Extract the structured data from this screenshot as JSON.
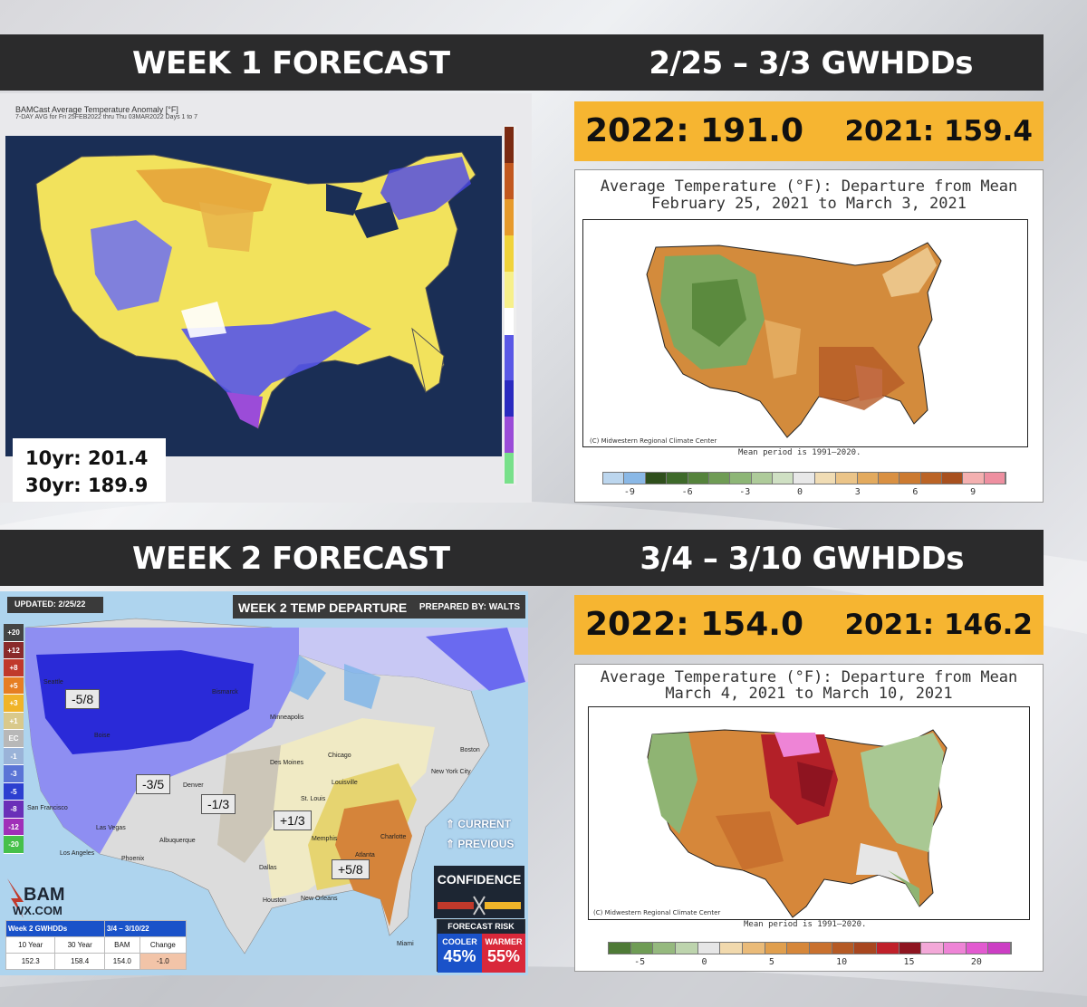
{
  "week1": {
    "title": "WEEK 1 FORECAST",
    "period": "2/25 – 3/3 GWHDDs",
    "gwhdd_2022": "2022: 191.0",
    "gwhdd_2021": "2021: 159.4",
    "bamcast_title": "BAMCast Average Temperature Anomaly [°F]",
    "bamcast_subtitle": "7-DAY AVG for Fri 25FEB2022 thru Thu 03MAR2022 Days 1 to 7",
    "avg_10yr": "10yr: 201.4",
    "avg_30yr": "30yr: 189.9",
    "climate_title_line1": "Average Temperature (°F): Departure from Mean",
    "climate_title_line2": "February 25, 2021 to March 3, 2021",
    "climate_credit": "(C) Midwestern Regional Climate Center",
    "mean_period": "Mean period is 1991–2020.",
    "colorbar_ticks": [
      "-9",
      "-6",
      "-3",
      "0",
      "3",
      "6",
      "9"
    ],
    "colorbar_colors": [
      "#bcd6ee",
      "#8ab8e6",
      "#2f4f1c",
      "#3e6a2a",
      "#55833c",
      "#6f9c55",
      "#8db676",
      "#aecb9a",
      "#cfe0c3",
      "#e8e8e8",
      "#f0dcb4",
      "#ebc488",
      "#e3aa5e",
      "#d99042",
      "#cc7a30",
      "#bb6426",
      "#a8501e",
      "#f4b0b0",
      "#ee8fa0"
    ]
  },
  "week2": {
    "title": "WEEK 2 FORECAST",
    "period": "3/4 – 3/10 GWHDDs",
    "gwhdd_2022": "2022: 154.0",
    "gwhdd_2021": "2021: 146.2",
    "map_title": "WEEK 2 TEMP DEPARTURE",
    "prepared_by": "PREPARED BY: WALTS",
    "updated": "UPDATED: 2/25/22",
    "legend": [
      {
        "label": "+20",
        "color": "#444444"
      },
      {
        "label": "+12",
        "color": "#8a2a2a"
      },
      {
        "label": "+8",
        "color": "#c0392b"
      },
      {
        "label": "+5",
        "color": "#e67e22"
      },
      {
        "label": "+3",
        "color": "#f0b429"
      },
      {
        "label": "+1",
        "color": "#d9c98b"
      },
      {
        "label": "EC",
        "color": "#b8b8b8"
      },
      {
        "label": "-1",
        "color": "#9ab3d8"
      },
      {
        "label": "-3",
        "color": "#5a74d6"
      },
      {
        "label": "-5",
        "color": "#2c3fd0"
      },
      {
        "label": "-8",
        "color": "#6a2fb8"
      },
      {
        "label": "-12",
        "color": "#a02fb8"
      },
      {
        "label": "-20",
        "color": "#46c04a"
      }
    ],
    "labels": {
      "l1": "-5/8",
      "l2": "-3/5",
      "l3": "-1/3",
      "l4": "+1/3",
      "l5": "+5/8"
    },
    "cities": {
      "seattle": "Seattle",
      "bismarck": "Bismarck",
      "boise": "Boise",
      "minneapolis": "Minneapolis",
      "chicago": "Chicago",
      "desmoines": "Des Moines",
      "denver": "Denver",
      "sanfrancisco": "San Francisco",
      "lasvegas": "Las Vegas",
      "losangeles": "Los Angeles",
      "phoenix": "Phoenix",
      "albuquerque": "Albuquerque",
      "dallas": "Dallas",
      "houston": "Houston",
      "neworleans": "New Orleans",
      "memphis": "Memphis",
      "atlanta": "Atlanta",
      "charlotte": "Charlotte",
      "louisville": "Louisville",
      "stlouis": "St. Louis",
      "boston": "Boston",
      "newyork": "New York City",
      "miami": "Miami"
    },
    "current": "CURRENT",
    "previous": "PREVIOUS",
    "confidence": "CONFIDENCE",
    "forecast_risk": "FORECAST RISK",
    "cooler_label": "COOLER",
    "cooler_pct": "45%",
    "warmer_label": "WARMER",
    "warmer_pct": "55%",
    "logo_text": "BAM",
    "logo_sub": "WX.COM",
    "table": {
      "title": "Week 2 GWHDDs",
      "dates": "3/4 – 3/10/22",
      "headers": [
        "10 Year",
        "30 Year",
        "BAM",
        "Change"
      ],
      "values": [
        "152.3",
        "158.4",
        "154.0",
        "-1.0"
      ]
    },
    "climate_title_line1": "Average Temperature (°F): Departure from Mean",
    "climate_title_line2": "March 4, 2021 to March 10, 2021",
    "climate_credit": "(C) Midwestern Regional Climate Center",
    "mean_period": "Mean period is 1991–2020.",
    "colorbar_ticks": [
      "-5",
      "0",
      "5",
      "10",
      "15",
      "20"
    ],
    "colorbar_colors": [
      "#4e7a36",
      "#6f9c55",
      "#95b97e",
      "#bdd4ad",
      "#e6e6e6",
      "#f1d9ad",
      "#eabb79",
      "#e09f4e",
      "#d6873a",
      "#c9712e",
      "#b55a25",
      "#a8461f",
      "#c0202a",
      "#8e1420",
      "#f3a8d8",
      "#ee84d6",
      "#e25ad0",
      "#cc3ec4"
    ]
  }
}
